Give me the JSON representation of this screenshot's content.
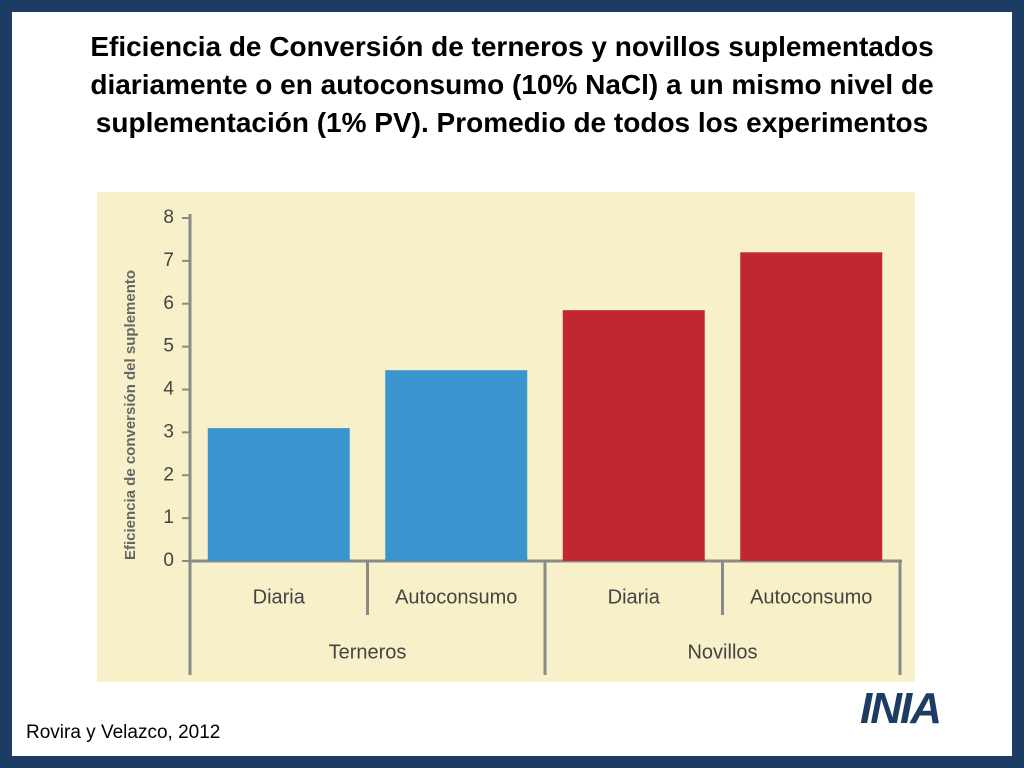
{
  "chart_data": {
    "type": "bar",
    "title": "Eficiencia de Conversión de terneros y novillos suplementados diariamente o en autoconsumo (10% NaCl) a un mismo nivel de suplementación (1% PV). Promedio de todos los experimentos",
    "y_label": "Eficiencia de conversión del suplemento",
    "categories": [
      "Diaria",
      "Autoconsumo",
      "Diaria",
      "Autoconsumo"
    ],
    "groups": [
      "Terneros",
      "Novillos"
    ],
    "values": [
      3.1,
      4.45,
      5.85,
      7.2
    ],
    "colors": [
      "#3a95cf",
      "#3a95cf",
      "#c1272f",
      "#c1272f"
    ],
    "ylim": [
      0,
      8
    ],
    "yticks": [
      0,
      1,
      2,
      3,
      4,
      5,
      6,
      7,
      8
    ],
    "grid": false,
    "source": "Rovira y Velazco, 2012",
    "logo": "INIA"
  }
}
